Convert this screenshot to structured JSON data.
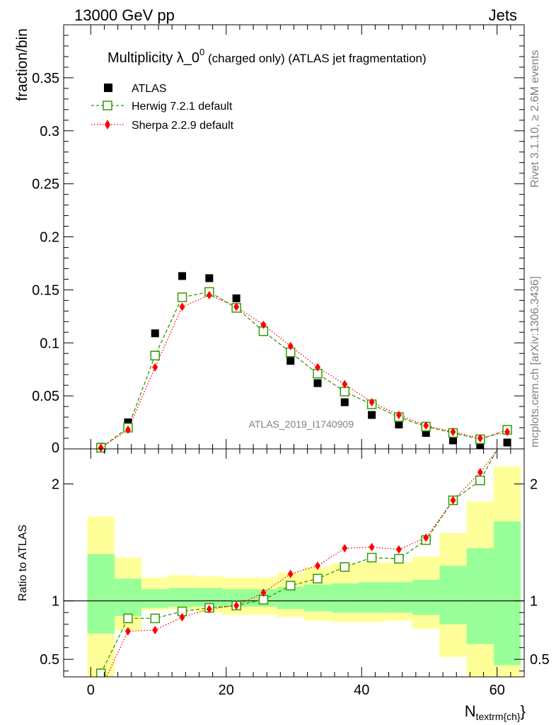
{
  "header": {
    "left": "13000 GeV pp",
    "right": "Jets"
  },
  "side_labels": {
    "rivet": "Rivet 3.1.10, ≥ 2.6M events",
    "mcplots": "mcplots.cern.ch [arXiv:1306.3436]"
  },
  "chart_data": [
    {
      "type": "scatter",
      "title_main": "Multiplicity λ_0",
      "title_sup": "0",
      "title_tail": " (charged only) (ATLAS jet fragmentation)",
      "ylabel": "fraction/bin",
      "watermark": "ATLAS_2019_I1740909",
      "xlim": [
        -4,
        64
      ],
      "ylim": [
        0,
        0.4
      ],
      "yticks": [
        0.05,
        0.1,
        0.15,
        0.2,
        0.25,
        0.3,
        0.35
      ],
      "ytick_labels": [
        "0.05",
        "0.1",
        "0.15",
        "0.2",
        "0.25",
        "0.3",
        "0.35"
      ],
      "y_zero_label": "0",
      "x": [
        1.5,
        5.5,
        9.5,
        13.5,
        17.5,
        21.5,
        25.5,
        29.5,
        33.5,
        37.5,
        41.5,
        45.5,
        49.5,
        53.5,
        57.5,
        61.5
      ],
      "series": [
        {
          "name": "ATLAS",
          "color": "#000000",
          "marker": "square-filled",
          "values": [
            0.002,
            0.025,
            0.109,
            0.163,
            0.161,
            0.142,
            0.111,
            0.083,
            0.062,
            0.044,
            0.032,
            0.023,
            0.015,
            0.008,
            0.004,
            0.006
          ]
        },
        {
          "name": "Herwig 7.2.1 default",
          "color": "#339900",
          "marker": "square-open",
          "line": "dashed",
          "values": [
            0.001,
            0.02,
            0.088,
            0.143,
            0.148,
            0.133,
            0.111,
            0.091,
            0.071,
            0.054,
            0.042,
            0.03,
            0.021,
            0.015,
            0.009,
            0.018
          ]
        },
        {
          "name": "Sherpa 2.2.9 default",
          "color": "#ff0000",
          "marker": "diamond",
          "line": "dotted",
          "values": [
            0.001,
            0.018,
            0.077,
            0.134,
            0.145,
            0.134,
            0.117,
            0.097,
            0.077,
            0.061,
            0.044,
            0.032,
            0.022,
            0.016,
            0.01,
            0.016
          ]
        }
      ],
      "legend_placement": "top-left"
    },
    {
      "type": "line",
      "ylabel": "Ratio to ATLAS",
      "xlabel_main": "N",
      "xlabel_sub": "textrm{ch}",
      "xlabel_close": "}",
      "xlim": [
        -4,
        64
      ],
      "ylim": [
        0.35,
        2.3
      ],
      "yticks": [
        0.5,
        1,
        2
      ],
      "ytick_labels": [
        "0.5",
        "1",
        "2"
      ],
      "xticks": [
        0,
        20,
        40,
        60
      ],
      "xtick_labels": [
        "0",
        "20",
        "40",
        "60"
      ],
      "bin_edges": [
        -0.5,
        3.5,
        7.5,
        11.5,
        15.5,
        19.5,
        23.5,
        27.5,
        31.5,
        35.5,
        39.5,
        43.5,
        47.5,
        51.5,
        55.5,
        59.5,
        63.5
      ],
      "band_outer": {
        "color": "#ffff99",
        "low": [
          0.3,
          0.75,
          0.92,
          0.93,
          0.9,
          0.88,
          0.88,
          0.86,
          0.83,
          0.82,
          0.82,
          0.83,
          0.76,
          0.52,
          0.3,
          0.3
        ],
        "high": [
          1.72,
          1.37,
          1.2,
          1.22,
          1.21,
          1.2,
          1.2,
          1.24,
          1.29,
          1.32,
          1.33,
          1.33,
          1.38,
          1.58,
          1.85,
          2.15
        ]
      },
      "band_inner": {
        "color": "#99ff99",
        "low": [
          0.72,
          0.87,
          0.94,
          0.95,
          0.95,
          0.95,
          0.95,
          0.93,
          0.91,
          0.9,
          0.9,
          0.9,
          0.88,
          0.8,
          0.63,
          0.45
        ],
        "high": [
          1.4,
          1.19,
          1.1,
          1.11,
          1.11,
          1.1,
          1.1,
          1.12,
          1.14,
          1.15,
          1.16,
          1.16,
          1.18,
          1.3,
          1.45,
          1.68
        ]
      },
      "x": [
        1.5,
        5.5,
        9.5,
        13.5,
        17.5,
        21.5,
        25.5,
        29.5,
        33.5,
        37.5,
        41.5,
        45.5,
        49.5,
        53.5,
        57.5,
        61.5
      ],
      "series": [
        {
          "name": "Herwig 7.2.1 default",
          "color": "#339900",
          "marker": "square-open",
          "line": "dashed",
          "values": [
            0.38,
            0.85,
            0.85,
            0.91,
            0.94,
            0.96,
            1.01,
            1.13,
            1.19,
            1.29,
            1.37,
            1.36,
            1.52,
            1.86,
            2.03,
            2.45
          ]
        },
        {
          "name": "Sherpa 2.2.9 default",
          "color": "#ff0000",
          "marker": "diamond",
          "line": "dotted",
          "values": [
            0.25,
            0.74,
            0.75,
            0.86,
            0.93,
            0.96,
            1.07,
            1.23,
            1.3,
            1.45,
            1.46,
            1.44,
            1.54,
            1.86,
            2.1,
            2.4
          ]
        }
      ]
    }
  ]
}
